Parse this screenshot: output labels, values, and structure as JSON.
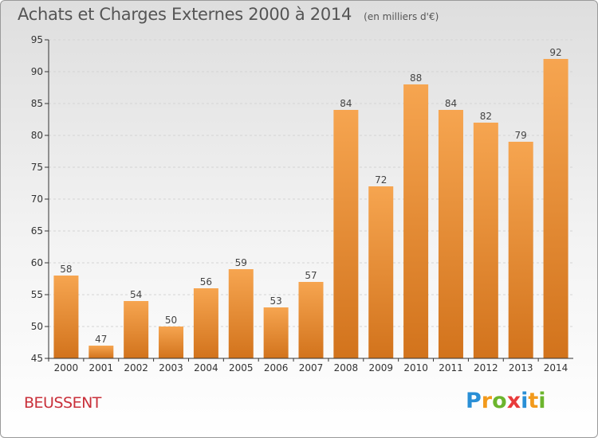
{
  "header": {
    "title": "Achats et Charges Externes 2000 à 2014",
    "subtitle": "(en milliers d'€)"
  },
  "footer": {
    "commune": "BEUSSENT",
    "logo_letters": [
      {
        "char": "P",
        "color": "#2a8fd6"
      },
      {
        "char": "r",
        "color": "#f29a1c"
      },
      {
        "char": "o",
        "color": "#6cb52d"
      },
      {
        "char": "x",
        "color": "#e83b3b"
      },
      {
        "char": "i",
        "color": "#2a8fd6"
      },
      {
        "char": "t",
        "color": "#f29a1c"
      },
      {
        "char": "i",
        "color": "#6cb52d"
      }
    ]
  },
  "colors": {
    "bar_top": "#f6a550",
    "bar_bottom": "#d2731c",
    "grid": "#d4d4d4",
    "axis": "#333333"
  },
  "chart_data": {
    "type": "bar",
    "categories": [
      "2000",
      "2001",
      "2002",
      "2003",
      "2004",
      "2005",
      "2006",
      "2007",
      "2008",
      "2009",
      "2010",
      "2011",
      "2012",
      "2013",
      "2014"
    ],
    "values": [
      58,
      47,
      54,
      50,
      56,
      59,
      53,
      57,
      84,
      72,
      88,
      84,
      82,
      79,
      92
    ],
    "ylim": [
      45,
      95
    ],
    "yticks": [
      45,
      50,
      55,
      60,
      65,
      70,
      75,
      80,
      85,
      90,
      95
    ],
    "grid": "horizontal-dashed",
    "legend": "none"
  }
}
